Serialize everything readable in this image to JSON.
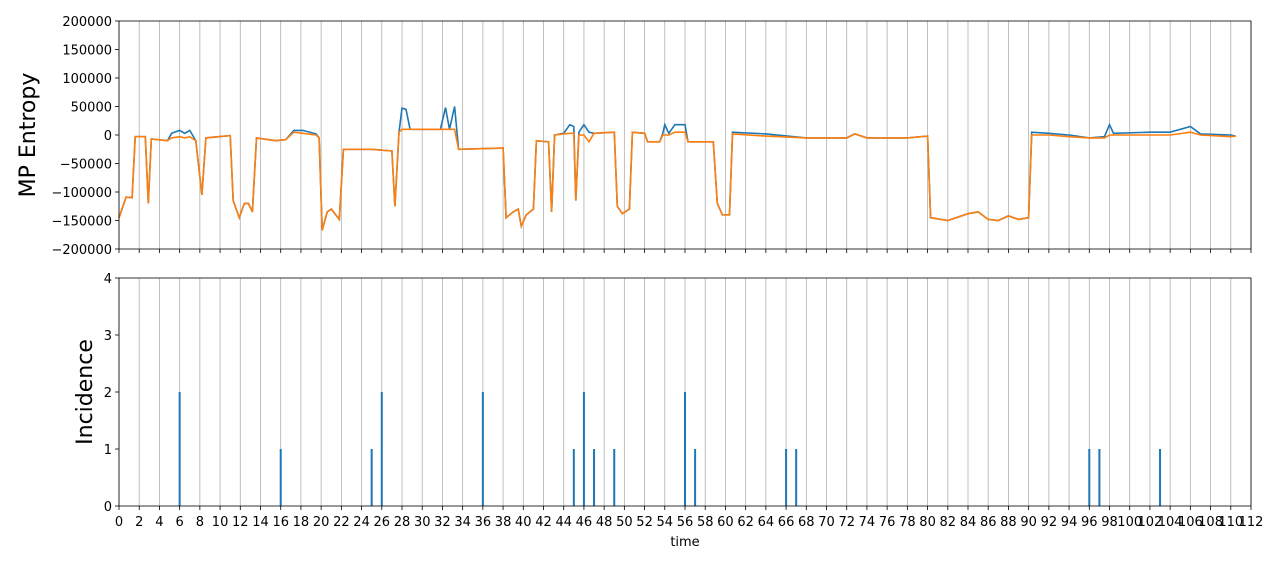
{
  "chart_data": [
    {
      "type": "line",
      "ylabel": "MP Entropy",
      "x": [
        0,
        0.7,
        1.3,
        1.6,
        2.6,
        2.9,
        3.2,
        4.8,
        5.2,
        6.0,
        6.5,
        7.0,
        7.6,
        8.2,
        8.6,
        11.0,
        11.3,
        11.9,
        12.4,
        12.8,
        13.2,
        13.6,
        15.5,
        16.5,
        17.3,
        18.2,
        19.5,
        19.8,
        20.1,
        20.6,
        21.0,
        21.8,
        22.2,
        25.0,
        27.0,
        27.3,
        27.7,
        28.0,
        28.4,
        28.8,
        31.8,
        32.3,
        32.7,
        33.2,
        33.6,
        38.0,
        38.3,
        39.0,
        39.5,
        39.8,
        40.3,
        41.0,
        41.3,
        42.5,
        42.8,
        43.1,
        44.0,
        44.6,
        45.0,
        45.2,
        45.5,
        46.0,
        46.5,
        47.0,
        49.0,
        49.3,
        49.8,
        50.5,
        50.8,
        52.0,
        52.3,
        53.5,
        53.8,
        54.0,
        54.4,
        55.0,
        56.0,
        56.3,
        58.8,
        59.2,
        59.7,
        60.4,
        60.7,
        64.0,
        68.0,
        70.0,
        72.0,
        72.8,
        74.0,
        78.0,
        80.0,
        80.3,
        82.0,
        84.0,
        85.0,
        86.0,
        87.0,
        88.0,
        89.0,
        90.0,
        90.3,
        92.0,
        94.0,
        96.0,
        97.5,
        98.0,
        98.4,
        102.0,
        104.0,
        106.0,
        107.0,
        110.0,
        110.5
      ],
      "series": [
        {
          "color": "#1f77b4",
          "values": [
            -145000,
            -109000,
            -110000,
            -3000,
            -3000,
            -120000,
            -7000,
            -10000,
            3000,
            8000,
            3000,
            8000,
            -10000,
            -105000,
            -5000,
            -1000,
            -115000,
            -145000,
            -120000,
            -120000,
            -135000,
            -5000,
            -10000,
            -8000,
            8000,
            8000,
            2000,
            -5000,
            -167000,
            -135000,
            -130000,
            -148000,
            -25000,
            -25000,
            -28000,
            -125000,
            5000,
            47000,
            45000,
            10000,
            10000,
            48000,
            10000,
            50000,
            -25000,
            -23000,
            -145000,
            -135000,
            -130000,
            -160000,
            -140000,
            -130000,
            -10000,
            -12000,
            -135000,
            0,
            3000,
            18000,
            15000,
            -115000,
            5000,
            18000,
            5000,
            3000,
            5000,
            -125000,
            -138000,
            -130000,
            5000,
            3000,
            -12000,
            -12000,
            3000,
            18000,
            3000,
            18000,
            18000,
            -12000,
            -12000,
            -120000,
            -140000,
            -140000,
            5000,
            2000,
            -5000,
            -5000,
            -5000,
            2000,
            -5000,
            -5000,
            -2000,
            -145000,
            -150000,
            -138000,
            -135000,
            -148000,
            -150000,
            -142000,
            -148000,
            -145000,
            5000,
            3000,
            0,
            -5000,
            -3000,
            18000,
            3000,
            5000,
            5000,
            15000,
            2000,
            0,
            -2000
          ]
        },
        {
          "color": "#ff7f0e",
          "values": [
            -145000,
            -109000,
            -110000,
            -3000,
            -3000,
            -120000,
            -7000,
            -10000,
            -5000,
            -3000,
            -5000,
            -3000,
            -10000,
            -105000,
            -5000,
            -1000,
            -115000,
            -145000,
            -120000,
            -120000,
            -135000,
            -5000,
            -10000,
            -8000,
            5000,
            3000,
            0,
            -5000,
            -167000,
            -135000,
            -130000,
            -148000,
            -25000,
            -25000,
            -28000,
            -125000,
            5000,
            10000,
            10000,
            10000,
            10000,
            10000,
            10000,
            10000,
            -25000,
            -23000,
            -145000,
            -135000,
            -130000,
            -160000,
            -140000,
            -130000,
            -10000,
            -12000,
            -135000,
            0,
            2000,
            3000,
            3000,
            -115000,
            0,
            0,
            -12000,
            3000,
            5000,
            -125000,
            -138000,
            -130000,
            5000,
            3000,
            -12000,
            -12000,
            0,
            0,
            0,
            5000,
            5000,
            -12000,
            -12000,
            -120000,
            -140000,
            -140000,
            2000,
            -2000,
            -5000,
            -5000,
            -5000,
            2000,
            -5000,
            -5000,
            -2000,
            -145000,
            -150000,
            -138000,
            -135000,
            -148000,
            -150000,
            -142000,
            -148000,
            -145000,
            0,
            0,
            -3000,
            -5000,
            -5000,
            0,
            0,
            0,
            0,
            5000,
            0,
            -3000,
            -2000
          ]
        }
      ],
      "xlim": [
        0,
        112
      ],
      "xticks": [
        0,
        2,
        4,
        6,
        8,
        10,
        12,
        14,
        16,
        18,
        20,
        22,
        24,
        26,
        28,
        30,
        32,
        34,
        36,
        38,
        40,
        42,
        44,
        46,
        48,
        50,
        52,
        54,
        56,
        58,
        60,
        62,
        64,
        66,
        68,
        70,
        72,
        74,
        76,
        78,
        80,
        82,
        84,
        86,
        88,
        90,
        92,
        94,
        96,
        98,
        100,
        102,
        104,
        106,
        108,
        110,
        112
      ],
      "ylim": [
        -200000,
        200000
      ],
      "yticks": [
        {
          "value": -200000,
          "label": "−200000"
        },
        {
          "value": -150000,
          "label": "−150000"
        },
        {
          "value": -100000,
          "label": "−100000"
        },
        {
          "value": -50000,
          "label": "−50000"
        },
        0,
        50000,
        100000,
        150000,
        200000
      ],
      "grid": "x"
    },
    {
      "type": "bar",
      "ylabel": "Incidence",
      "xlabel": "time",
      "color": "#1f77b4",
      "x": [
        6,
        16,
        25,
        26,
        36,
        45,
        46,
        47,
        49,
        56,
        57,
        66,
        67,
        96,
        97,
        103
      ],
      "values": [
        2,
        1,
        1,
        2,
        2,
        1,
        2,
        1,
        1,
        2,
        1,
        1,
        1,
        1,
        1,
        1
      ],
      "xlim": [
        0,
        112
      ],
      "xticks": [
        0,
        2,
        4,
        6,
        8,
        10,
        12,
        14,
        16,
        18,
        20,
        22,
        24,
        26,
        28,
        30,
        32,
        34,
        36,
        38,
        40,
        42,
        44,
        46,
        48,
        50,
        52,
        54,
        56,
        58,
        60,
        62,
        64,
        66,
        68,
        70,
        72,
        74,
        76,
        78,
        80,
        82,
        84,
        86,
        88,
        90,
        92,
        94,
        96,
        98,
        100,
        102,
        104,
        106,
        108,
        110,
        112
      ],
      "ylim": [
        0,
        4
      ],
      "yticks": [
        0,
        1,
        2,
        3,
        4
      ],
      "grid": "x"
    }
  ]
}
